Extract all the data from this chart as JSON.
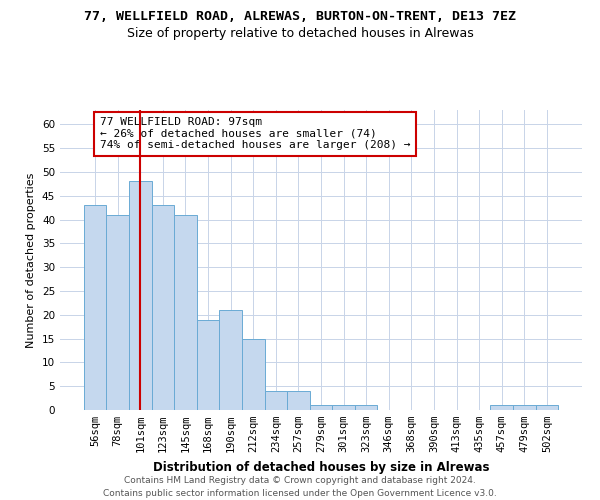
{
  "title_line1": "77, WELLFIELD ROAD, ALREWAS, BURTON-ON-TRENT, DE13 7EZ",
  "title_line2": "Size of property relative to detached houses in Alrewas",
  "xlabel": "Distribution of detached houses by size in Alrewas",
  "ylabel": "Number of detached properties",
  "categories": [
    "56sqm",
    "78sqm",
    "101sqm",
    "123sqm",
    "145sqm",
    "168sqm",
    "190sqm",
    "212sqm",
    "234sqm",
    "257sqm",
    "279sqm",
    "301sqm",
    "323sqm",
    "346sqm",
    "368sqm",
    "390sqm",
    "413sqm",
    "435sqm",
    "457sqm",
    "479sqm",
    "502sqm"
  ],
  "values": [
    43,
    41,
    48,
    43,
    41,
    19,
    21,
    15,
    4,
    4,
    1,
    1,
    1,
    0,
    0,
    0,
    0,
    0,
    1,
    1,
    1
  ],
  "bar_color": "#c5d8ee",
  "bar_edge_color": "#6aaad4",
  "red_line_index": 2,
  "red_line_color": "#cc0000",
  "annotation_line1": "77 WELLFIELD ROAD: 97sqm",
  "annotation_line2": "← 26% of detached houses are smaller (74)",
  "annotation_line3": "74% of semi-detached houses are larger (208) →",
  "annotation_box_color": "#ffffff",
  "annotation_box_edge": "#cc0000",
  "ylim": [
    0,
    63
  ],
  "yticks": [
    0,
    5,
    10,
    15,
    20,
    25,
    30,
    35,
    40,
    45,
    50,
    55,
    60
  ],
  "footer_line1": "Contains HM Land Registry data © Crown copyright and database right 2024.",
  "footer_line2": "Contains public sector information licensed under the Open Government Licence v3.0.",
  "background_color": "#ffffff",
  "grid_color": "#c8d4e8",
  "title_fontsize": 9.5,
  "subtitle_fontsize": 9,
  "axis_label_fontsize": 8.5,
  "ylabel_fontsize": 8,
  "tick_fontsize": 7.5,
  "annotation_fontsize": 8,
  "footer_fontsize": 6.5
}
